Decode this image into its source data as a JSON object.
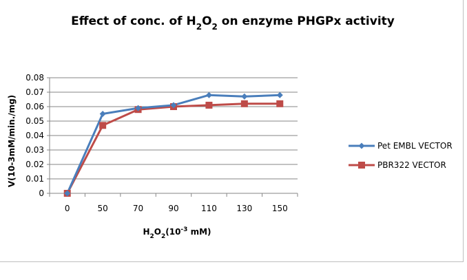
{
  "chart_data": {
    "type": "line",
    "title": {
      "prefix": "Effect of conc. of H",
      "sub": "2",
      "mid": "O",
      "sub2": "2",
      "suffix": " on enzyme PHGPx activity"
    },
    "xlabel": {
      "a": "H",
      "b": "2",
      "c": "O",
      "d": "2",
      "e": "(10",
      "f": "-3",
      "g": " mM)"
    },
    "ylabel": "V(10-3mM/min./mg)",
    "categories": [
      "0",
      "50",
      "70",
      "90",
      "110",
      "130",
      "150"
    ],
    "ylim": [
      0,
      0.08
    ],
    "ytick_labels": [
      "0",
      "0.01",
      "0.02",
      "0.03",
      "0.04",
      "0.05",
      "0.06",
      "0.07",
      "0.08"
    ],
    "grid": true,
    "legend_position": "right",
    "series": [
      {
        "name": "Pet EMBL VECTOR",
        "color": "#4a7ebb",
        "marker": "diamond",
        "values": [
          0,
          0.055,
          0.059,
          0.061,
          0.068,
          0.067,
          0.068
        ]
      },
      {
        "name": "PBR322 VECTOR",
        "color": "#be4b48",
        "marker": "square",
        "values": [
          0,
          0.047,
          0.058,
          0.06,
          0.061,
          0.062,
          0.062
        ]
      }
    ]
  }
}
